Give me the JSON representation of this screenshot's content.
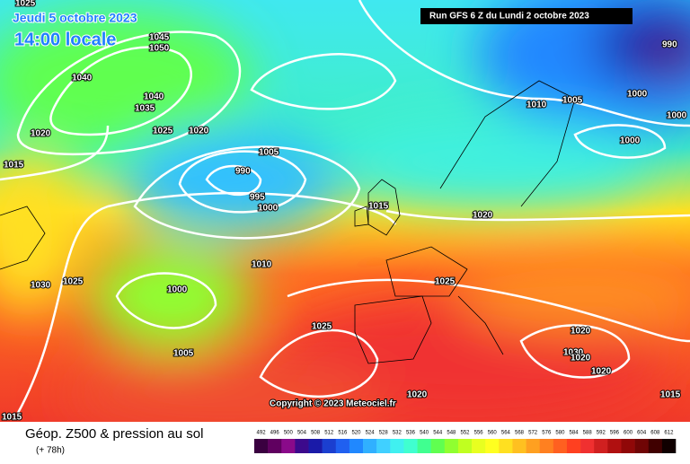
{
  "header": {
    "date": "Jeudi 5 octobre 2023",
    "time": "14:00 locale",
    "run": "Run GFS 6 Z du Lundi 2 octobre 2023"
  },
  "isobar_labels": [
    "1025",
    "1045",
    "1050",
    "1040",
    "1040",
    "1035",
    "1025",
    "1020",
    "1020",
    "1015",
    "1005",
    "990",
    "995",
    "1000",
    "1015",
    "1020",
    "1010",
    "1030",
    "1025",
    "1000",
    "1025",
    "1025",
    "1005",
    "1020",
    "1030",
    "1020",
    "1020",
    "1020",
    "1015",
    "1015",
    "1010",
    "1005",
    "1000",
    "1000",
    "1000",
    "990"
  ],
  "copyright": "Copyright © 2023 Meteociel.fr",
  "footer": {
    "title": "Géop. Z500 & pression au sol",
    "lead": "(+ 78h)"
  },
  "scale": {
    "labels": [
      492,
      496,
      500,
      504,
      508,
      512,
      516,
      520,
      524,
      528,
      532,
      536,
      540,
      544,
      548,
      552,
      556,
      560,
      564,
      568,
      572,
      576,
      580,
      584,
      588,
      592,
      596,
      600,
      604,
      608,
      612
    ],
    "colors": [
      "#3a0040",
      "#600060",
      "#8a0a8a",
      "#3c0a8c",
      "#1a1aa8",
      "#1b3fd0",
      "#2060f0",
      "#2088ff",
      "#30b0ff",
      "#40d0ff",
      "#40f0f0",
      "#40ffd0",
      "#40ff90",
      "#60ff50",
      "#90ff30",
      "#c0ff20",
      "#e8ff20",
      "#ffff20",
      "#ffe020",
      "#ffc020",
      "#ffa020",
      "#ff8020",
      "#ff6020",
      "#ff4020",
      "#f03030",
      "#d02020",
      "#b01010",
      "#900808",
      "#700505",
      "#400000",
      "#100000"
    ]
  }
}
